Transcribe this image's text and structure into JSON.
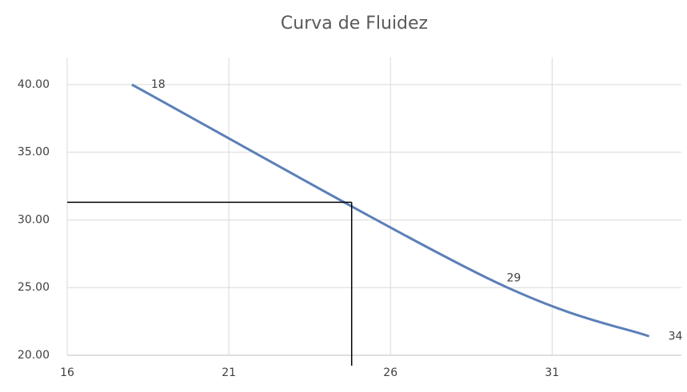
{
  "chart_data": {
    "type": "scatter",
    "title": "Curva de Fluidez",
    "x": [
      18,
      29,
      34
    ],
    "series": [
      {
        "color": "#5b7fb8",
        "values": [
          40.0,
          25.7,
          21.4
        ]
      }
    ],
    "xlim": [
      16,
      35
    ],
    "xticks": [
      16,
      21,
      26,
      31
    ],
    "ylim": [
      20,
      42
    ],
    "yticks": [
      {
        "value": 20,
        "label": "20.00"
      },
      {
        "value": 25,
        "label": "25.00"
      },
      {
        "value": 30,
        "label": "30.00"
      },
      {
        "value": 35,
        "label": "35.00"
      },
      {
        "value": 40,
        "label": "40.00"
      }
    ],
    "grid": true,
    "reference": {
      "x": 24.8,
      "y": 31.3
    }
  }
}
